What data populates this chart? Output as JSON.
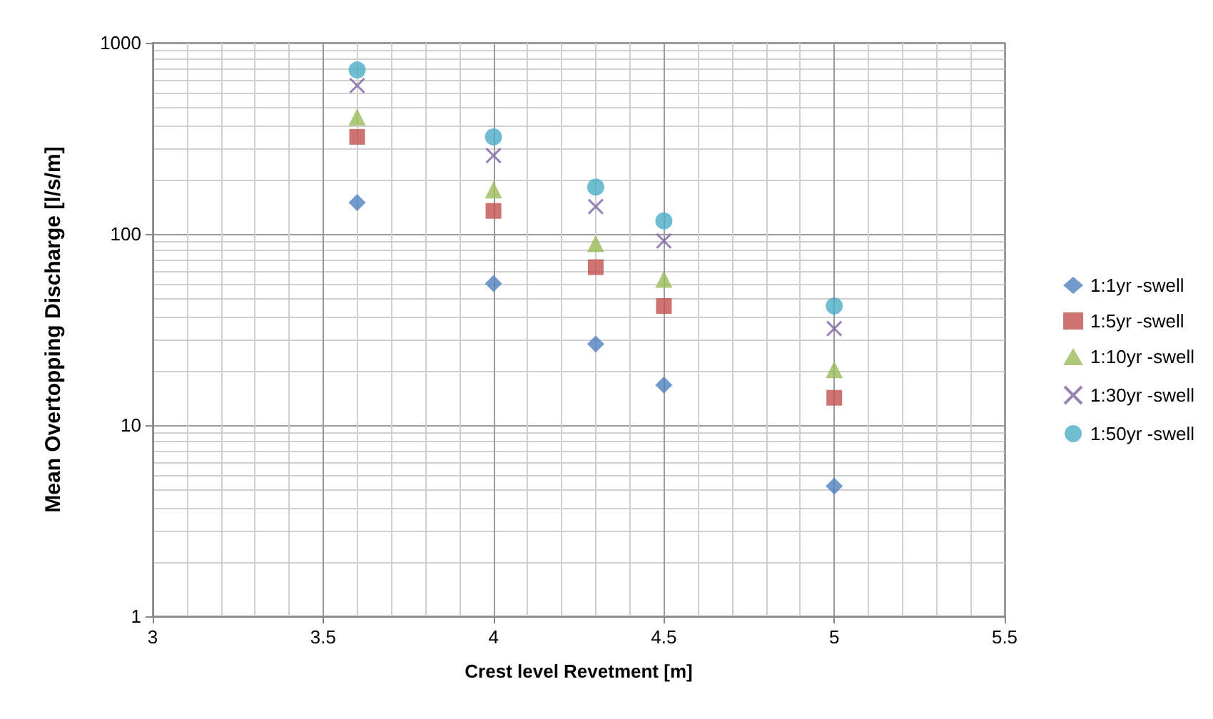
{
  "chart_data": {
    "type": "scatter",
    "xlabel": "Crest level Revetment [m]",
    "ylabel": "Mean Overtopping Discharge [l/s/m]",
    "x": [
      3.6,
      4,
      4.3,
      4.5,
      5
    ],
    "series": [
      {
        "name": "1:1yr -swell",
        "color": "#4f81bd",
        "marker": "diamond",
        "values": [
          146,
          55,
          26.6,
          16.2,
          4.8
        ]
      },
      {
        "name": "1:5yr -swell",
        "color": "#c0504d",
        "marker": "square",
        "values": [
          322,
          132,
          67,
          42,
          13.9
        ]
      },
      {
        "name": "1:10yr -swell",
        "color": "#9bbb59",
        "marker": "triangle",
        "values": [
          409,
          170,
          89,
          58,
          19.5
        ]
      },
      {
        "name": "1:30yr -swell",
        "color": "#8064a2",
        "marker": "cross",
        "values": [
          597,
          257,
          139,
          92,
          32
        ]
      },
      {
        "name": "1:50yr -swell",
        "color": "#4bacc6",
        "marker": "circle",
        "values": [
          721,
          322,
          176,
          117,
          42
        ]
      }
    ],
    "xlim": [
      3,
      5.5
    ],
    "xticks": [
      3,
      3.5,
      4,
      4.5,
      5,
      5.5
    ],
    "ylim": [
      1,
      1000
    ],
    "yticks": [
      1,
      10,
      100,
      1000
    ],
    "log": "y",
    "grid": true,
    "legend": "right"
  }
}
